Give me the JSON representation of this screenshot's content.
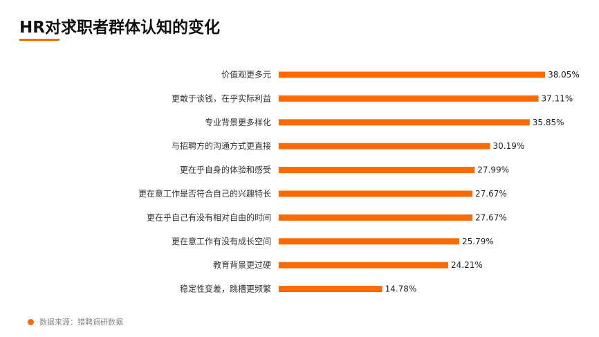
{
  "colors": {
    "bar": "#ff6a00",
    "accent": "#ff6a00"
  },
  "source": "数据来源：猎聘调研数据",
  "chart_data": {
    "type": "bar",
    "orientation": "horizontal",
    "title": "HR对求职者群体认知的变化",
    "categories": [
      "价值观更多元",
      "更敢于谈钱，在乎实际利益",
      "专业背景更多样化",
      "与招聘方的沟通方式更直接",
      "更在乎自身的体验和感受",
      "更在意工作是否符合自己的兴趣特长",
      "更在乎自己有没有相对自由的时间",
      "更在意工作有没有成长空间",
      "教育背景更过硬",
      "稳定性变差，跳槽更频繁"
    ],
    "values": [
      38.05,
      37.11,
      35.85,
      30.19,
      27.99,
      27.67,
      27.67,
      25.79,
      24.21,
      14.78
    ],
    "value_labels": [
      "38.05%",
      "37.11%",
      "35.85%",
      "30.19%",
      "27.99%",
      "27.67%",
      "27.67%",
      "25.79%",
      "24.21%",
      "14.78%"
    ],
    "unit": "%",
    "grid": false,
    "legend": "none"
  }
}
